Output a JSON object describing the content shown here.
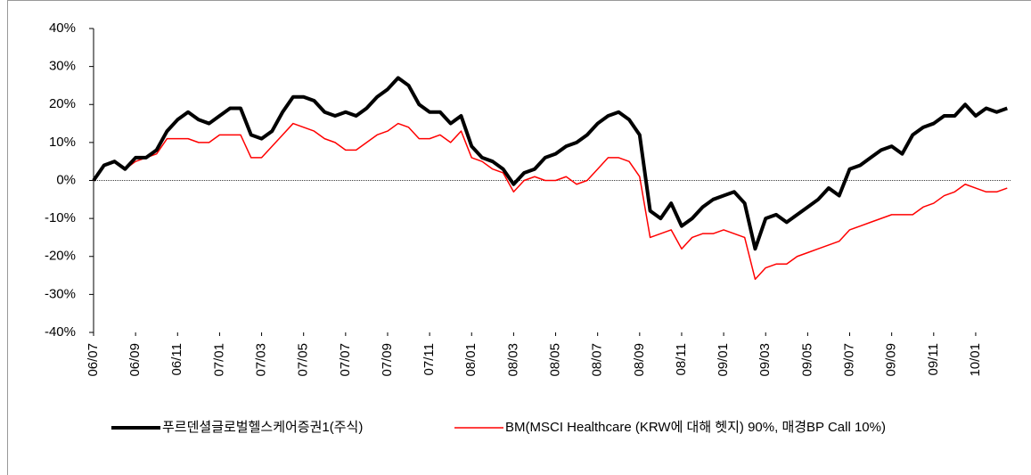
{
  "chart_data": {
    "type": "line",
    "x": [
      0,
      0.5,
      1,
      1.5,
      2,
      2.5,
      3,
      3.5,
      4,
      4.5,
      5,
      5.5,
      6,
      6.5,
      7,
      7.5,
      8,
      8.5,
      9,
      9.5,
      10,
      10.5,
      11,
      11.5,
      12,
      12.5,
      13,
      13.5,
      14,
      14.5,
      15,
      15.5,
      16,
      16.5,
      17,
      17.5,
      18,
      18.5,
      19,
      19.5,
      20,
      20.5,
      21,
      21.5,
      22,
      22.5,
      23,
      23.5,
      24,
      24.5,
      25,
      25.5,
      26,
      26.5,
      27,
      27.5,
      28,
      28.5,
      29,
      29.5,
      30,
      30.5,
      31,
      31.5,
      32,
      32.5,
      33,
      33.5,
      34,
      34.5,
      35,
      35.5,
      36,
      36.5,
      37,
      37.5,
      38,
      38.5,
      39,
      39.5,
      40,
      40.5,
      41,
      41.5,
      42,
      42.5,
      43,
      43.5
    ],
    "series": [
      {
        "name": "푸르덴셜글로벌헬스케어증권1(주식)",
        "color": "#000000",
        "width": 4,
        "values": [
          0,
          4,
          5,
          3,
          6,
          6,
          8,
          13,
          16,
          18,
          16,
          15,
          17,
          19,
          19,
          12,
          11,
          13,
          18,
          22,
          22,
          21,
          18,
          17,
          18,
          17,
          19,
          22,
          24,
          27,
          25,
          20,
          18,
          18,
          15,
          17,
          9,
          6,
          5,
          3,
          -1,
          2,
          3,
          6,
          7,
          9,
          10,
          12,
          15,
          17,
          18,
          16,
          12,
          -8,
          -10,
          -6,
          -12,
          -10,
          -7,
          -5,
          -4,
          -3,
          -6,
          -18,
          -10,
          -9,
          -11,
          -9,
          -7,
          -5,
          -2,
          -4,
          3,
          4,
          6,
          8,
          9,
          7,
          12,
          14,
          15,
          17,
          17,
          20,
          17,
          19,
          18,
          19
        ]
      },
      {
        "name": "BM(MSCI Healthcare (KRW에 대해 헷지) 90%, 매경BP Call 10%)",
        "color": "#ff0000",
        "width": 1.5,
        "values": [
          0,
          4,
          5,
          3,
          5,
          6,
          7,
          11,
          11,
          11,
          10,
          10,
          12,
          12,
          12,
          6,
          6,
          9,
          12,
          15,
          14,
          13,
          11,
          10,
          8,
          8,
          10,
          12,
          13,
          15,
          14,
          11,
          11,
          12,
          10,
          13,
          6,
          5,
          3,
          2,
          -3,
          0,
          1,
          0,
          0,
          1,
          -1,
          0,
          3,
          6,
          6,
          5,
          1,
          -15,
          -14,
          -13,
          -18,
          -15,
          -14,
          -14,
          -13,
          -14,
          -15,
          -26,
          -23,
          -22,
          -22,
          -20,
          -19,
          -18,
          -17,
          -16,
          -13,
          -12,
          -11,
          -10,
          -9,
          -9,
          -9,
          -7,
          -6,
          -4,
          -3,
          -1,
          -2,
          -3,
          -3,
          -2
        ]
      }
    ],
    "xlim": [
      0,
      43.7
    ],
    "xticks": [
      {
        "value": 0,
        "label": "06/07"
      },
      {
        "value": 2,
        "label": "06/09"
      },
      {
        "value": 4,
        "label": "06/11"
      },
      {
        "value": 6,
        "label": "07/01"
      },
      {
        "value": 8,
        "label": "07/03"
      },
      {
        "value": 10,
        "label": "07/05"
      },
      {
        "value": 12,
        "label": "07/07"
      },
      {
        "value": 14,
        "label": "07/09"
      },
      {
        "value": 16,
        "label": "07/11"
      },
      {
        "value": 18,
        "label": "08/01"
      },
      {
        "value": 20,
        "label": "08/03"
      },
      {
        "value": 22,
        "label": "08/05"
      },
      {
        "value": 24,
        "label": "08/07"
      },
      {
        "value": 26,
        "label": "08/09"
      },
      {
        "value": 28,
        "label": "08/11"
      },
      {
        "value": 30,
        "label": "09/01"
      },
      {
        "value": 32,
        "label": "09/03"
      },
      {
        "value": 34,
        "label": "09/05"
      },
      {
        "value": 36,
        "label": "09/07"
      },
      {
        "value": 38,
        "label": "09/09"
      },
      {
        "value": 40,
        "label": "09/11"
      },
      {
        "value": 42,
        "label": "10/01"
      }
    ],
    "ylim": [
      -40,
      40
    ],
    "yticks": [
      {
        "value": -40,
        "label": "-40%"
      },
      {
        "value": -30,
        "label": "-30%"
      },
      {
        "value": -20,
        "label": "-20%"
      },
      {
        "value": -10,
        "label": "-10%"
      },
      {
        "value": 0,
        "label": "0%"
      },
      {
        "value": 10,
        "label": "10%"
      },
      {
        "value": 20,
        "label": "20%"
      },
      {
        "value": 30,
        "label": "30%"
      },
      {
        "value": 40,
        "label": "40%"
      }
    ],
    "legend": "bottom"
  }
}
